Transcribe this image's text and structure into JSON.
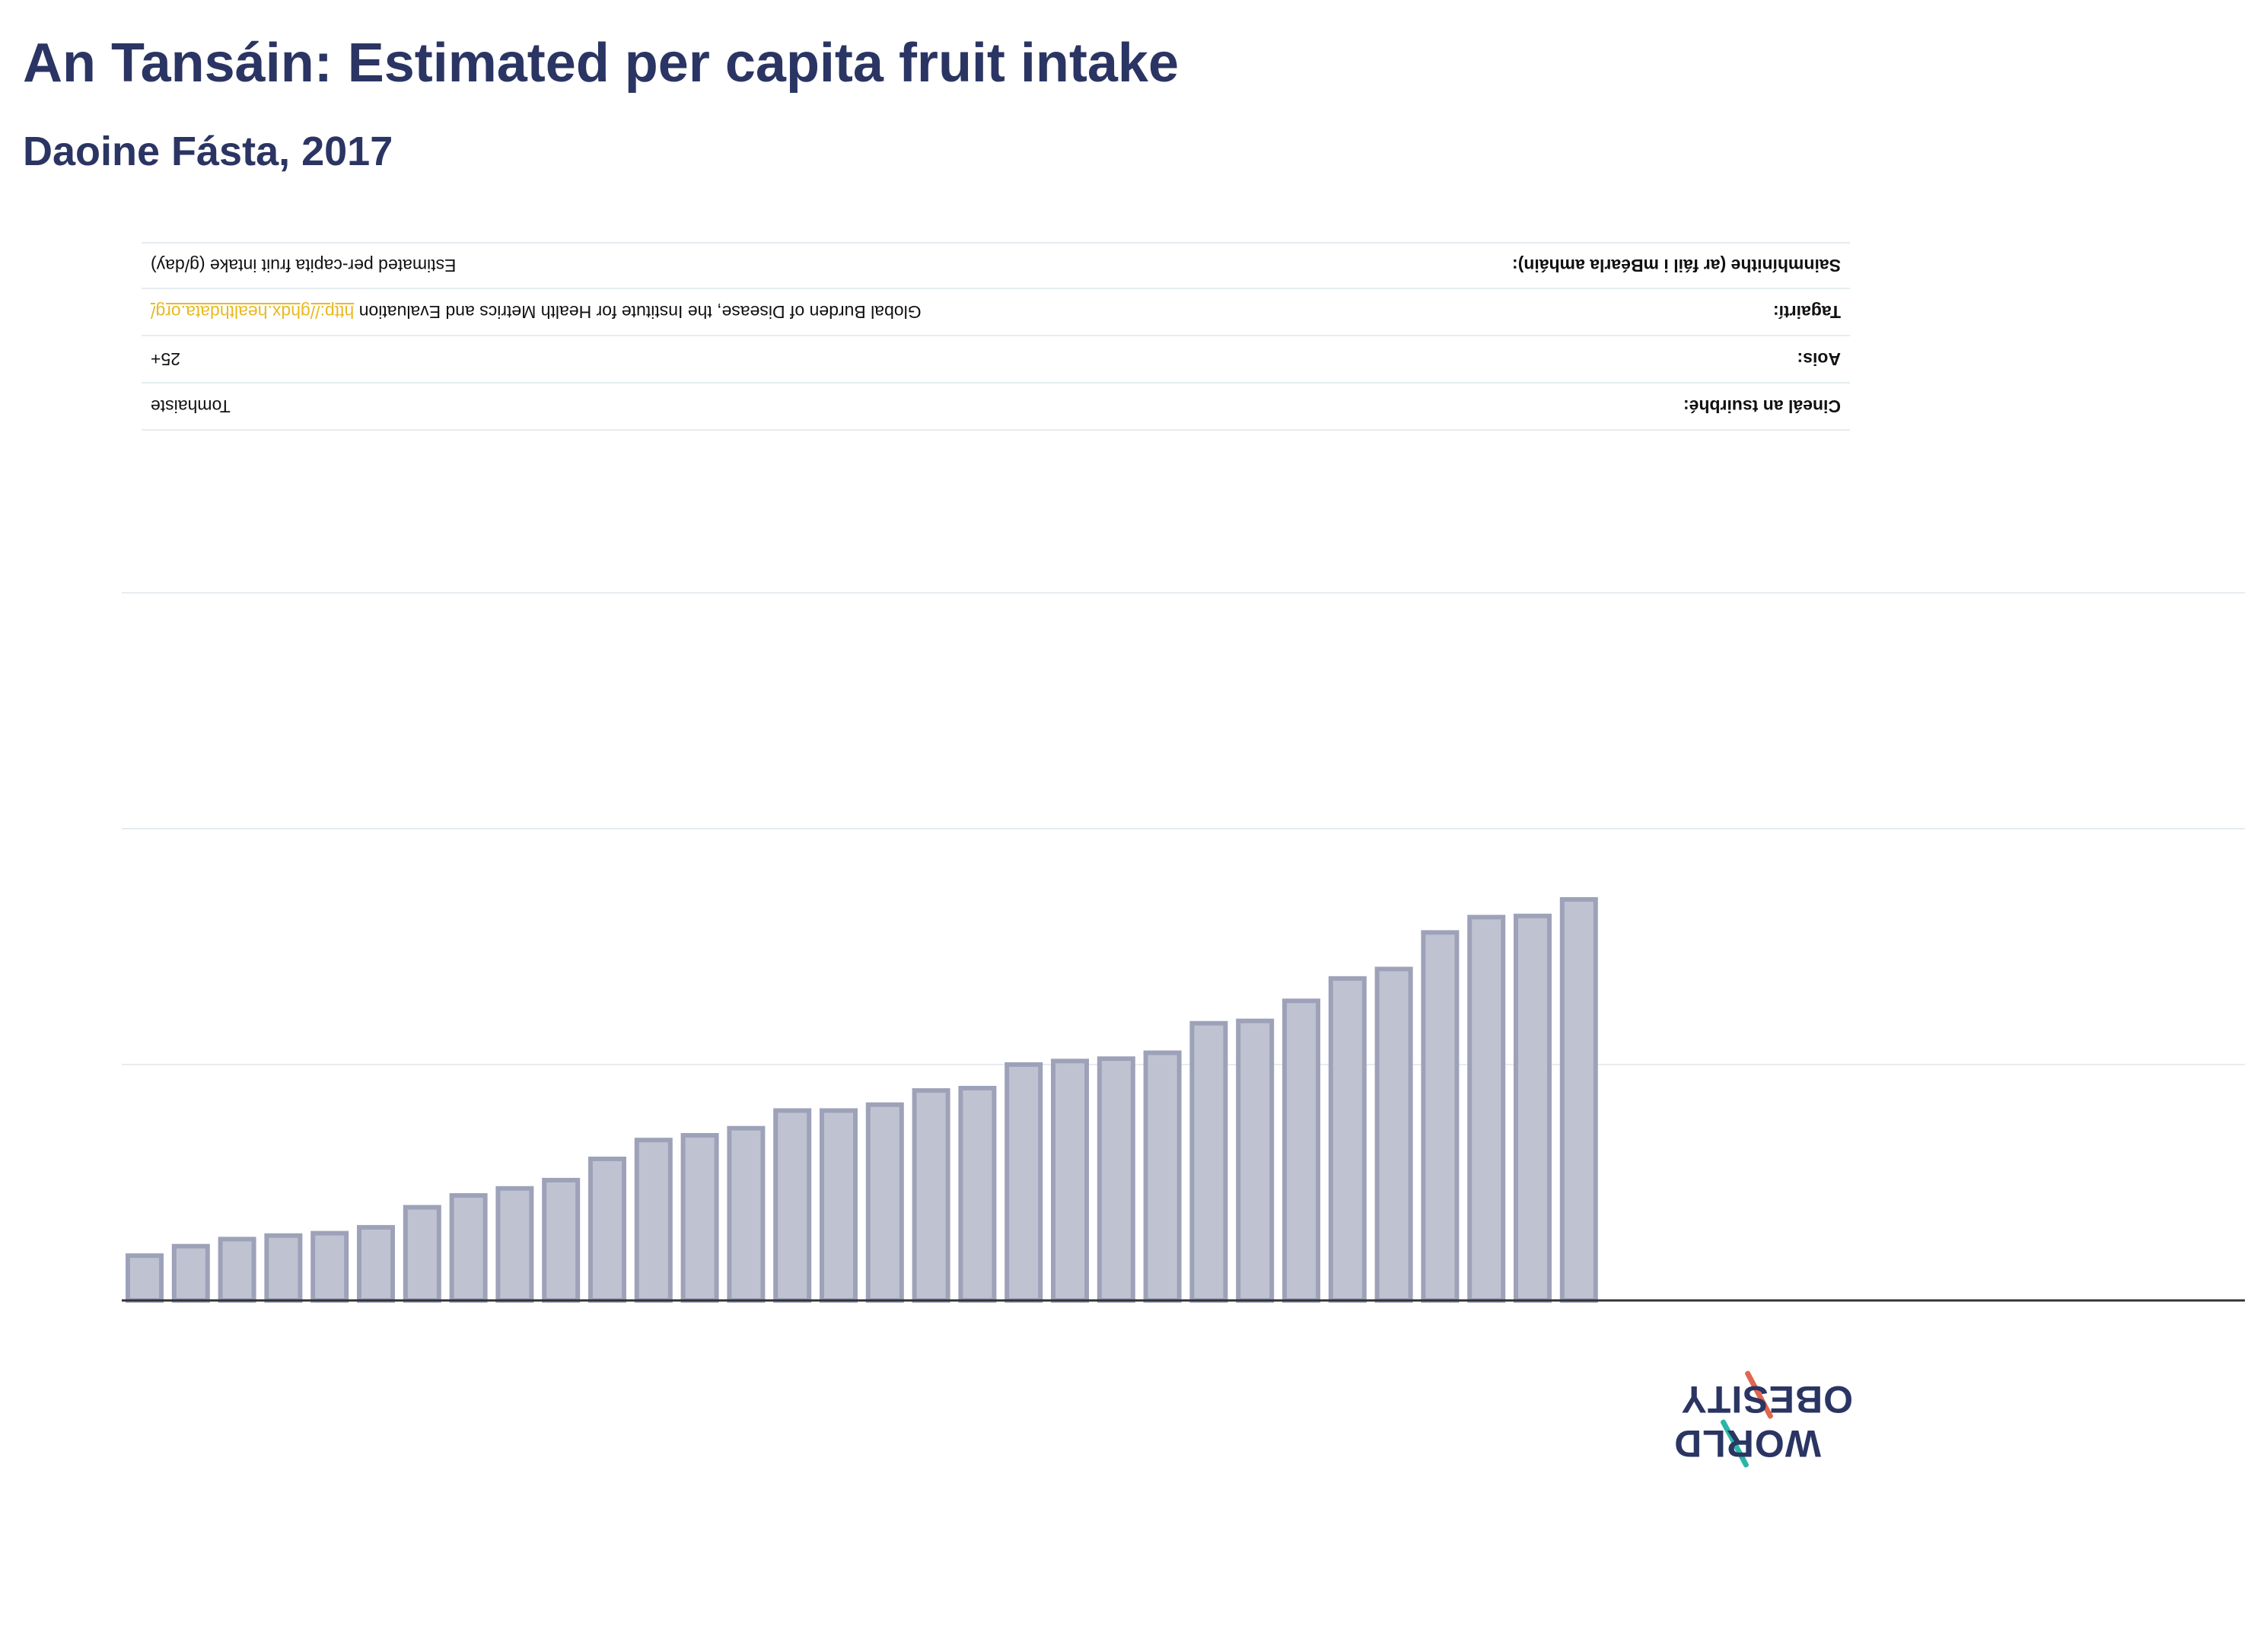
{
  "header": {
    "title": "An Tansáin: Estimated per capita fruit intake",
    "subtitle": "Daoine Fásta, 2017"
  },
  "info_table": {
    "rows": [
      {
        "label": "Cineál an tsuirbhé:",
        "value": "Tomhaiste"
      },
      {
        "label": "Aois:",
        "value": "25+"
      },
      {
        "label": "Tagairtí:",
        "value": "Global Burden of Disease, the Institute for Health Metrics and Evaluation",
        "link": "http://ghdx.healthdata.org/"
      },
      {
        "label": "Sainmhínithe (ar fáil i mBéarla amháin):",
        "value": "Estimated per-capita fruit intake (g/day)"
      }
    ]
  },
  "logo": {
    "line1": "OBESITY",
    "line2": "WORLD"
  },
  "chart_data": {
    "type": "bar",
    "values": [
      19,
      23,
      26,
      27.5,
      28.5,
      31,
      39.5,
      44.5,
      47.5,
      51,
      60,
      68,
      70,
      73,
      80.5,
      80.5,
      83,
      89,
      90,
      100,
      101.5,
      102.5,
      105,
      117.5,
      118.5,
      127,
      136.5,
      140.5,
      156,
      162.5,
      163,
      170
    ],
    "ylim": [
      0,
      300
    ],
    "grid": true,
    "legend": "none",
    "colors": {
      "bar_fill": "#bfc3d1",
      "bar_stroke": "#9da2b9",
      "grid": "#e6ecef",
      "axis": "#333333"
    }
  }
}
